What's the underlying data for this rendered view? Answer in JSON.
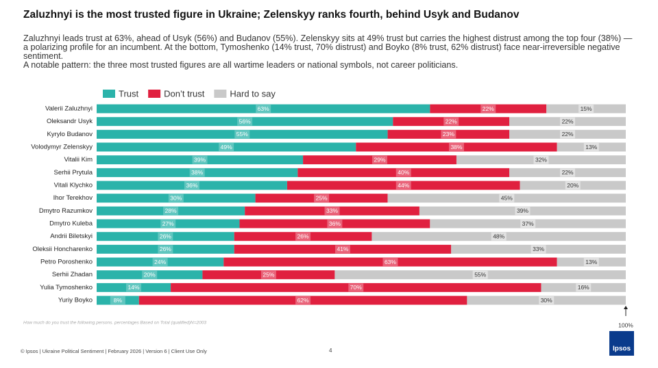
{
  "header": {
    "title": "Zaluzhnyi is the most trusted figure in Ukraine; Zelenskyy ranks fourth, behind Usyk and Budanov",
    "paragraphs": [
      "Zaluzhnyi leads trust at 63%, ahead of Usyk (56%) and Budanov (55%). Zelenskyy sits at 49% trust but carries the highest distrust among the top four (38%) — a polarizing profile for an incumbent. At the bottom, Tymoshenko (14% trust, 70% distrust) and Boyko (8% trust, 62% distrust) face near-irreversible negative sentiment.",
      "A notable pattern: the three most trusted figures are all wartime leaders or national symbols, not career politicians."
    ]
  },
  "chart_data": {
    "type": "stacked-bar-horizontal",
    "categories": [
      "Valerii Zaluzhnyi",
      "Oleksandr Usyk",
      "Kyrylo Budanov",
      "Volodymyr Zelenskyy",
      "Vitalii Kim",
      "Serhii Prytula",
      "Vitali Klychko",
      "Ihor Terekhov",
      "Dmytro Razumkov",
      "Dmytro Kuleba",
      "Andrii Biletskyi",
      "Oleksii Honcharenko",
      "Petro Poroshenko",
      "Serhii Zhadan",
      "Yulia Tymoshenko",
      "Yuriy Boyko"
    ],
    "series": [
      {
        "name": "Trust",
        "color": "#2bb3aa",
        "values": [
          63,
          56,
          55,
          49,
          39,
          38,
          36,
          30,
          28,
          27,
          26,
          26,
          24,
          20,
          14,
          8
        ],
        "value_labels": [
          "63%",
          "56%",
          "55%",
          "49%",
          "39%",
          "38%",
          "36%",
          "30%",
          "28%",
          "27%",
          "26%",
          "26%",
          "24%",
          "20%",
          "14%",
          "8%"
        ]
      },
      {
        "name": "Don’t trust",
        "color": "#e0203f",
        "values": [
          22,
          22,
          23,
          38,
          29,
          40,
          44,
          25,
          33,
          36,
          26,
          41,
          63,
          25,
          70,
          62
        ],
        "value_labels": [
          "22%",
          "22%",
          "23%",
          "38%",
          "29%",
          "40%",
          "44%",
          "25%",
          "33%",
          "36%",
          "26%",
          "41%",
          "63%",
          "25%",
          "70%",
          "62%"
        ]
      },
      {
        "name": "Hard to say",
        "color": "#c9c9c9",
        "values": [
          15,
          22,
          22,
          13,
          32,
          22,
          20,
          45,
          39,
          37,
          48,
          33,
          13,
          55,
          16,
          30
        ],
        "value_labels": [
          "15%",
          "22%",
          "22%",
          "13%",
          "32%",
          "22%",
          "20%",
          "45%",
          "39%",
          "37%",
          "48%",
          "33%",
          "13%",
          "55%",
          "16%",
          "30%"
        ]
      }
    ],
    "xlim": [
      0,
      100
    ],
    "xticks": [
      {
        "value": 100,
        "label": "100%"
      }
    ],
    "legend": "top-left",
    "note": "How much do you trust the following persons. percentages Based on Total (qualified)N=2003"
  },
  "footer": {
    "text": "© Ipsos | Ukraine Political Sentiment | February 2026 | Version 6 | Client Use Only",
    "page": "4",
    "logo": "Ipsos"
  }
}
